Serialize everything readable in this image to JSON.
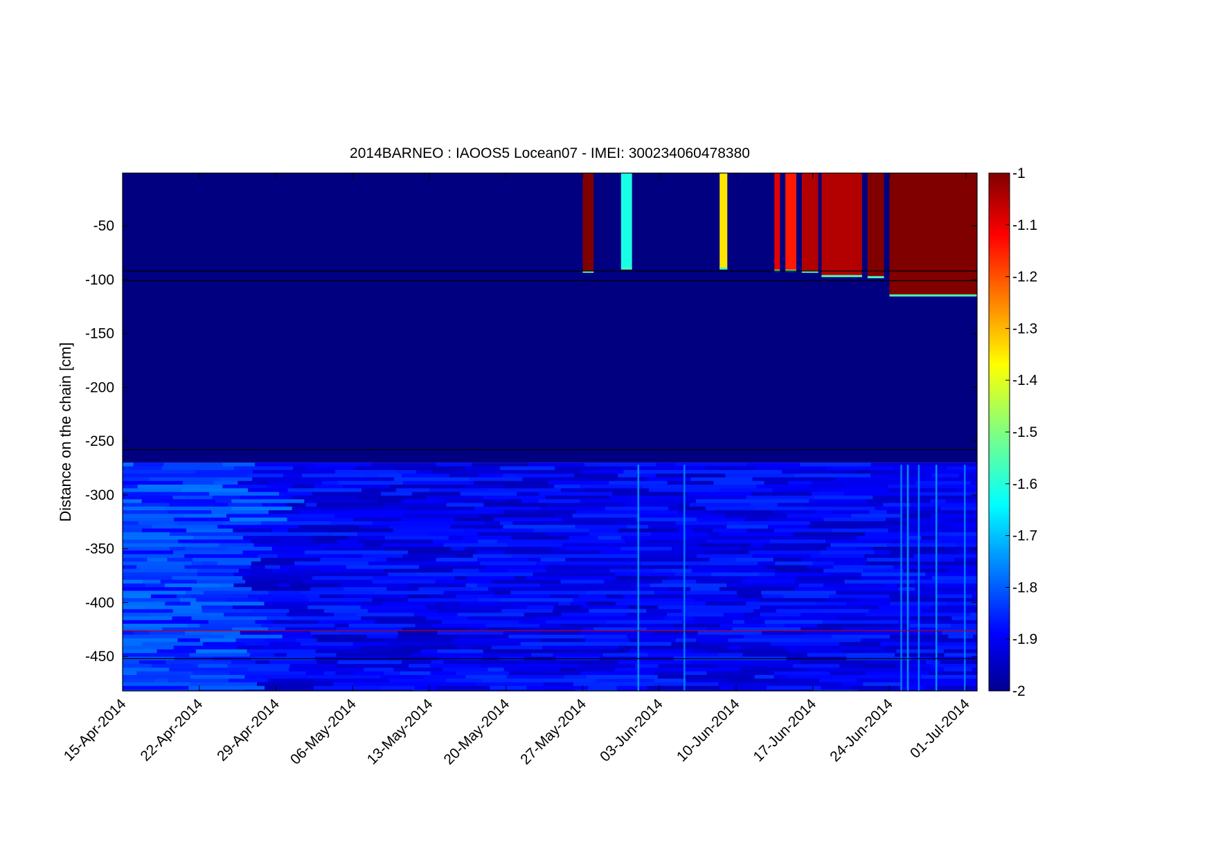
{
  "chart_data": {
    "type": "heatmap",
    "title": "2014BARNEO : IAOOS5  Locean07 - IMEI: 300234060478380",
    "ylabel": "Distance on the chain [cm]",
    "xlabel": "",
    "x_tick_labels": [
      "15-Apr-2014",
      "22-Apr-2014",
      "29-Apr-2014",
      "06-May-2014",
      "13-May-2014",
      "20-May-2014",
      "27-May-2014",
      "03-Jun-2014",
      "10-Jun-2014",
      "17-Jun-2014",
      "24-Jun-2014",
      "01-Jul-2014"
    ],
    "x_ticks_days": [
      0,
      7,
      14,
      21,
      28,
      35,
      42,
      49,
      56,
      63,
      70,
      77
    ],
    "x_range_days": [
      0,
      78
    ],
    "y_ticks": [
      -50,
      -100,
      -150,
      -200,
      -250,
      -300,
      -350,
      -400,
      -450
    ],
    "y_tick_labels": [
      "-50",
      "-100",
      "-150",
      "-200",
      "-250",
      "-300",
      "-350",
      "-400",
      "-450"
    ],
    "ylim": [
      -482,
      -1
    ],
    "colorbar": {
      "colormap": "jet",
      "range": [
        -2,
        -1
      ],
      "ticks": [
        -1,
        -1.1,
        -1.2,
        -1.3,
        -1.4,
        -1.5,
        -1.6,
        -1.7,
        -1.8,
        -1.9,
        -2
      ],
      "tick_labels": [
        "-1",
        "-1.1",
        "-1.2",
        "-1.3",
        "-1.4",
        "-1.5",
        "-1.6",
        "-1.7",
        "-1.8",
        "-1.9",
        "-2"
      ]
    },
    "reference_lines": [
      {
        "y": -92,
        "color": "#000000"
      },
      {
        "y": -101,
        "color": "#000000"
      },
      {
        "y": -258,
        "color": "#000000"
      },
      {
        "y": -426,
        "color": "#cc0000"
      },
      {
        "y": -452,
        "color": "#000000"
      }
    ],
    "layers": [
      {
        "name": "upper",
        "y_from": -1,
        "y_to": -92,
        "base_value": -2.0
      },
      {
        "name": "middle",
        "y_from": -92,
        "y_to": -270,
        "base_value": -2.0
      },
      {
        "name": "lower",
        "y_from": -270,
        "y_to": -482,
        "base_value": -1.88
      }
    ],
    "warm_events": [
      {
        "day_start": 42.0,
        "day_end": 43.0,
        "value": -1.0,
        "y_bottom": -93
      },
      {
        "day_start": 45.5,
        "day_end": 46.5,
        "value": -1.6,
        "y_bottom": -90
      },
      {
        "day_start": 54.5,
        "day_end": 55.2,
        "value": -1.35,
        "y_bottom": -90
      },
      {
        "day_start": 59.5,
        "day_end": 60.0,
        "value": -1.1,
        "y_bottom": -92
      },
      {
        "day_start": 60.5,
        "day_end": 61.5,
        "value": -1.15,
        "y_bottom": -92
      },
      {
        "day_start": 62.0,
        "day_end": 63.5,
        "value": -1.05,
        "y_bottom": -93
      },
      {
        "day_start": 63.8,
        "day_end": 67.5,
        "value": -1.05,
        "y_bottom": -97
      },
      {
        "day_start": 68.0,
        "day_end": 69.5,
        "value": -1.0,
        "y_bottom": -98
      },
      {
        "day_start": 70.0,
        "day_end": 78.0,
        "value": -1.0,
        "y_bottom": -115
      }
    ]
  }
}
